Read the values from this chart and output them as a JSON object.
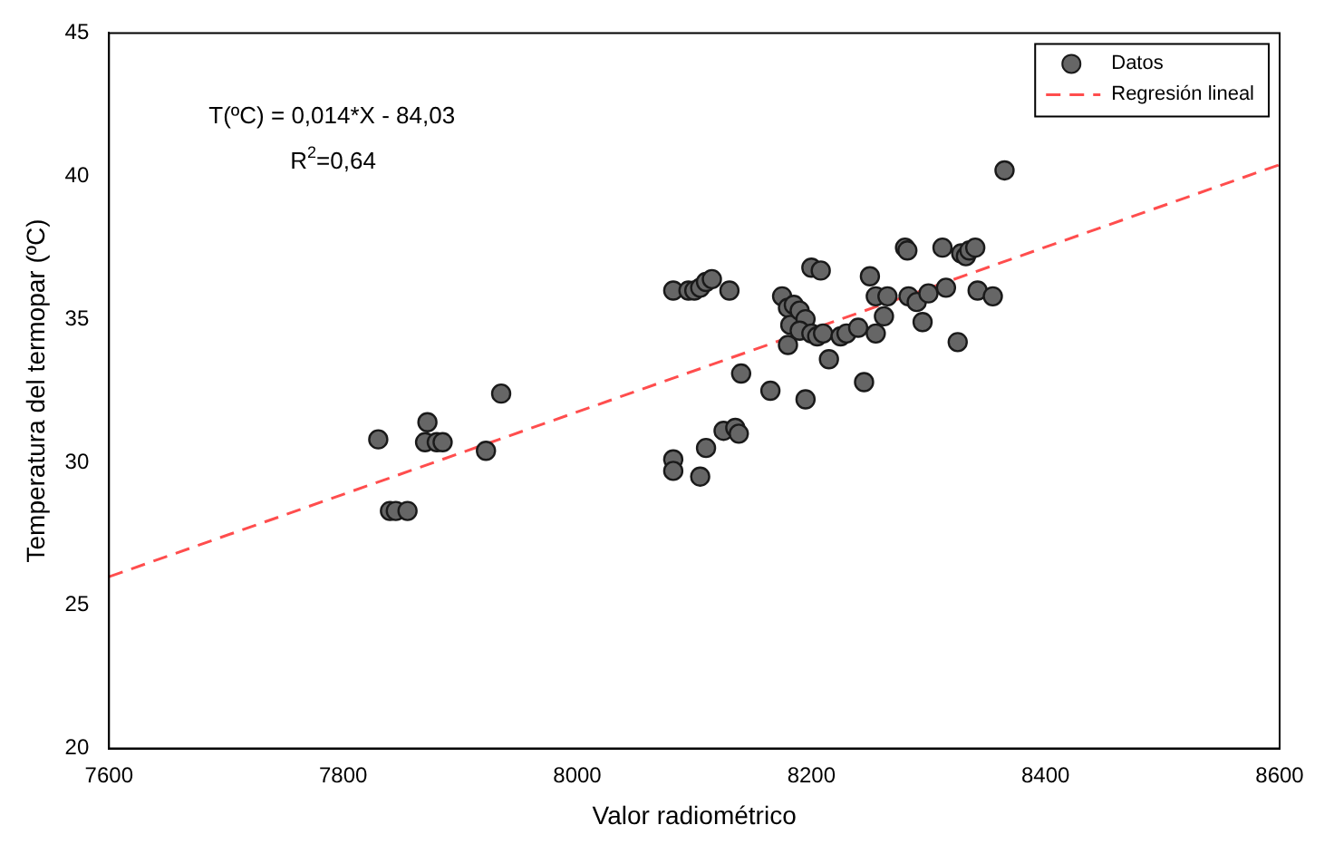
{
  "chart_data": {
    "type": "scatter",
    "xlabel": "Valor radiométrico",
    "ylabel": "Temperatura del termopar (ºC)",
    "xlim": [
      7600,
      8600
    ],
    "ylim": [
      20,
      45
    ],
    "xticks": [
      7600,
      7800,
      8000,
      8200,
      8400,
      8600
    ],
    "yticks": [
      20,
      25,
      30,
      35,
      40,
      45
    ],
    "grid": false,
    "legend": "top right",
    "marker": "circle",
    "annotations": [
      "T(ºC) = 0,014*X - 84,03",
      "R$^{2}$=0,64"
    ],
    "series": [
      {
        "name": "Datos",
        "type": "scatter",
        "color": "#666666",
        "x": [
          7830,
          7840,
          7845,
          7855,
          7870,
          7872,
          7880,
          7885,
          7922,
          7935,
          8082,
          8095,
          8100,
          8105,
          8110,
          8115,
          8130,
          8082,
          8082,
          8105,
          8110,
          8125,
          8135,
          8138,
          8140,
          8165,
          8195,
          8175,
          8180,
          8182,
          8185,
          8180,
          8190,
          8195,
          8190,
          8200,
          8208,
          8200,
          8205,
          8210,
          8215,
          8225,
          8230,
          8240,
          8245,
          8250,
          8255,
          8255,
          8262,
          8265,
          8280,
          8282,
          8283,
          8290,
          8295,
          8300,
          8312,
          8315,
          8328,
          8332,
          8335,
          8340,
          8325,
          8342,
          8355,
          8365
        ],
        "values": [
          30.8,
          28.3,
          28.3,
          28.3,
          30.7,
          31.4,
          30.7,
          30.7,
          30.4,
          32.4,
          36.0,
          36.0,
          36.0,
          36.1,
          36.3,
          36.4,
          36.0,
          30.1,
          29.7,
          29.5,
          30.5,
          31.1,
          31.2,
          31.0,
          33.1,
          32.5,
          32.2,
          35.8,
          35.4,
          34.8,
          35.5,
          34.1,
          35.3,
          35.0,
          34.6,
          36.8,
          36.7,
          34.5,
          34.4,
          34.5,
          33.6,
          34.4,
          34.5,
          34.7,
          32.8,
          36.5,
          35.8,
          34.5,
          35.1,
          35.8,
          37.5,
          37.4,
          35.8,
          35.6,
          34.9,
          35.9,
          37.5,
          36.1,
          37.3,
          37.2,
          37.4,
          37.5,
          34.2,
          36.0,
          35.8,
          40.2
        ]
      },
      {
        "name": "Regresión lineal",
        "type": "line",
        "color": "#ff4d4d",
        "line_style": "dashed",
        "marker": "none",
        "x": [
          7600,
          8600
        ],
        "values": [
          26.0,
          40.4
        ]
      }
    ]
  }
}
